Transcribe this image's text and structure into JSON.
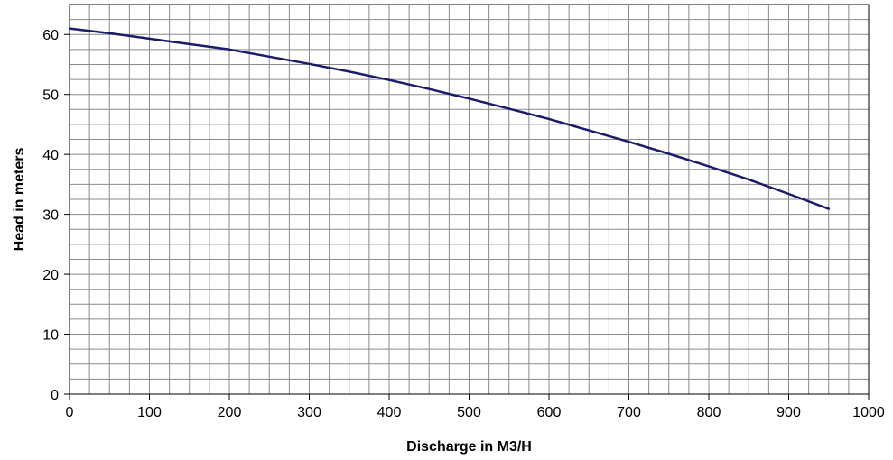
{
  "chart_data": {
    "type": "line",
    "title": "",
    "xlabel": "Discharge in M3/H",
    "ylabel": "Head in meters",
    "xlim": [
      0,
      1000
    ],
    "ylim": [
      0,
      65
    ],
    "x_ticks": [
      0,
      100,
      200,
      300,
      400,
      500,
      600,
      700,
      800,
      900,
      1000
    ],
    "y_ticks": [
      0,
      10,
      20,
      30,
      40,
      50,
      60
    ],
    "x_minor_step": 25,
    "y_minor_step": 2.5,
    "grid": true,
    "series": [
      {
        "color": "#1b1a6b",
        "x": [
          0,
          50,
          100,
          150,
          200,
          250,
          300,
          350,
          400,
          450,
          500,
          550,
          600,
          650,
          700,
          750,
          800,
          850,
          900,
          950
        ],
        "y": [
          61,
          60.2,
          59.3,
          58.4,
          57.5,
          56.3,
          55.1,
          53.8,
          52.4,
          50.9,
          49.3,
          47.6,
          45.9,
          44.0,
          42.1,
          40.1,
          38.0,
          35.8,
          33.4,
          30.9
        ]
      }
    ]
  }
}
